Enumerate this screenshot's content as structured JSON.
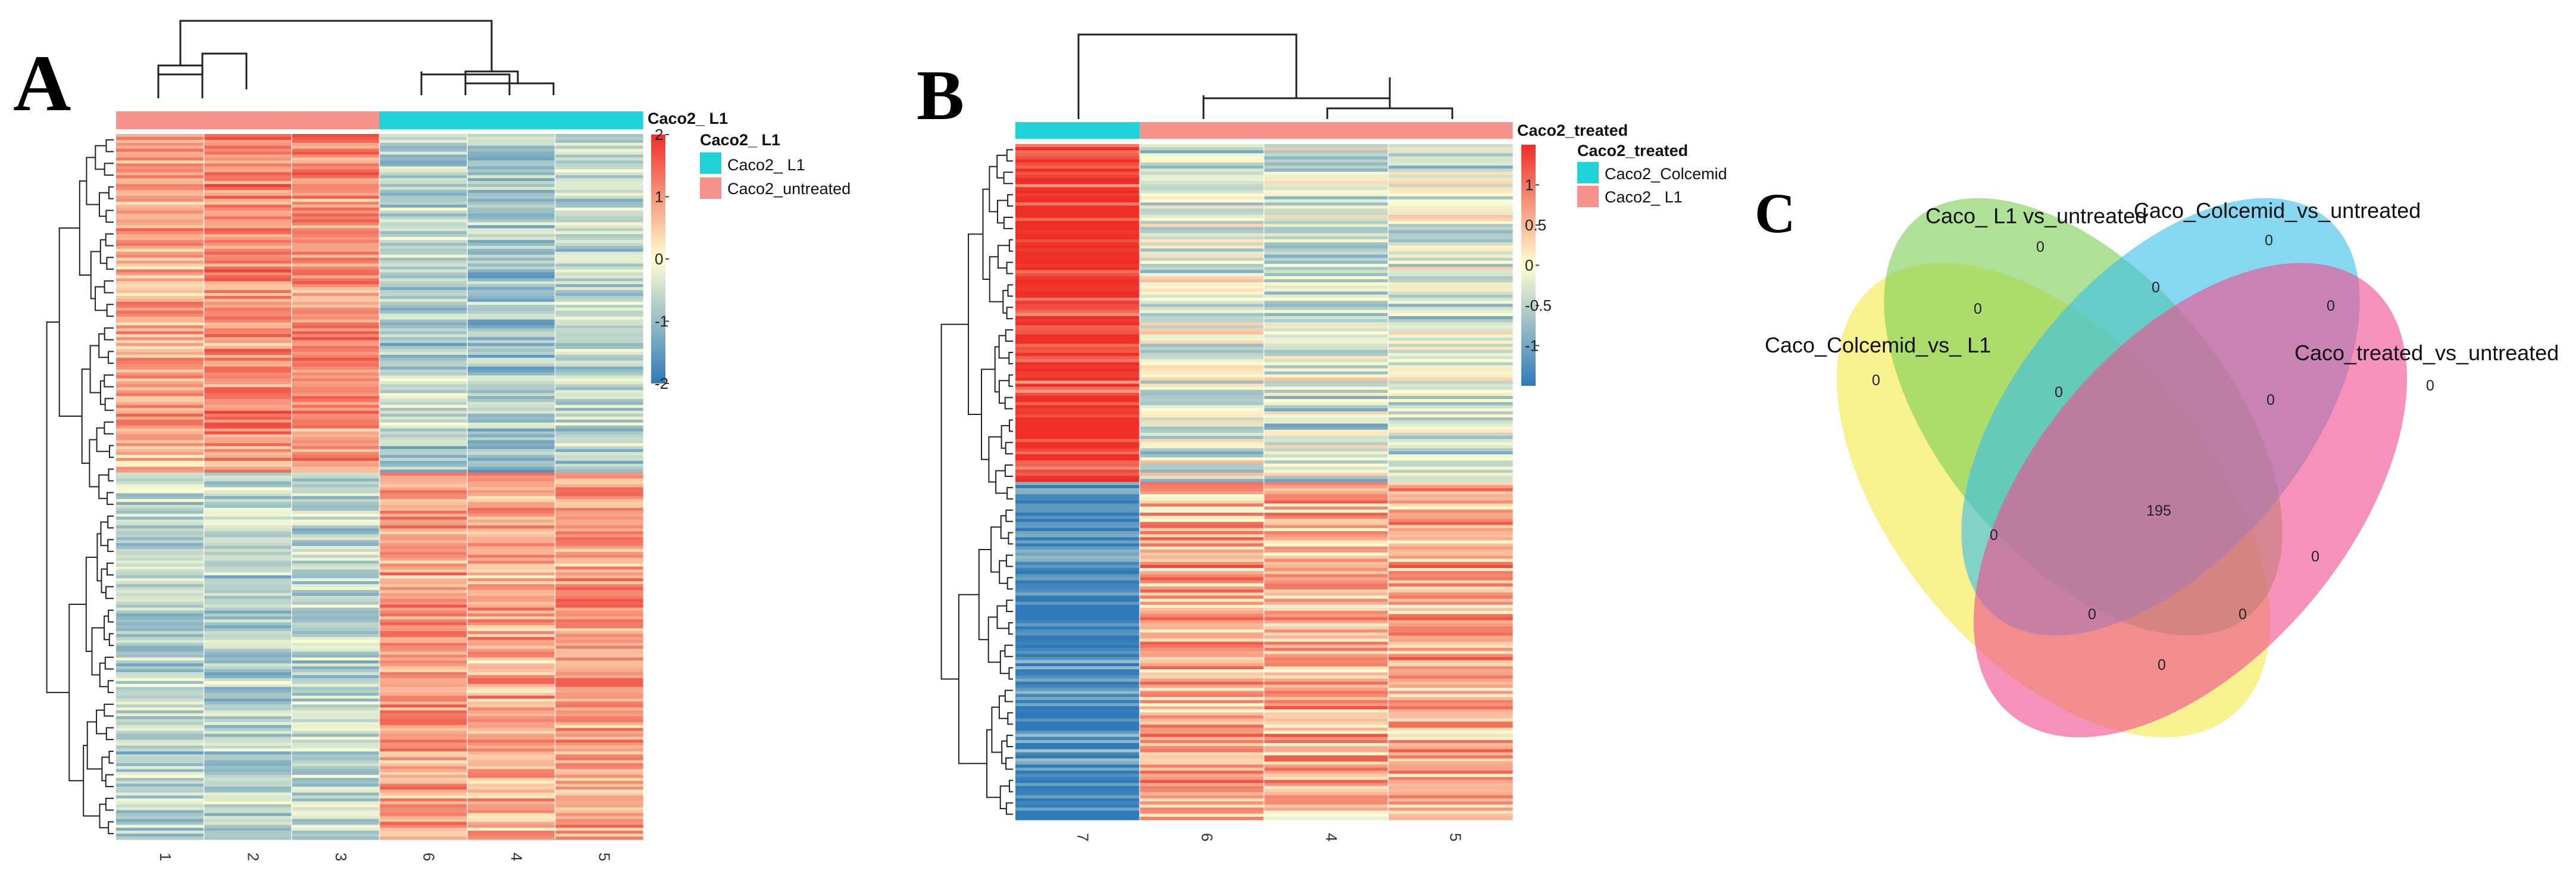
{
  "chart_data": [
    {
      "type": "heatmap",
      "panel_label": "A",
      "column_labels": [
        "1",
        "2",
        "3",
        "6",
        "4",
        "5"
      ],
      "column_groups": [
        "Caco2_untreated",
        "Caco2_untreated",
        "Caco2_untreated",
        "Caco2_ L1",
        "Caco2_ L1",
        "Caco2_ L1"
      ],
      "annotation_title": "Caco2_ L1",
      "legend_title": "Caco2_ L1",
      "legend_entries": [
        {
          "label": "Caco2_ L1",
          "color": "#1fd3d8"
        },
        {
          "label": "Caco2_untreated",
          "color": "#f7938a"
        }
      ],
      "color_scale": {
        "min": -2,
        "max": 2,
        "ticks": [
          "2",
          "1",
          "0",
          "-1",
          "-2"
        ],
        "colors": [
          "#2f7ab9",
          "#ffffd2",
          "#ee2e27"
        ]
      },
      "row_blocks": [
        {
          "fraction": 0.48,
          "means": [
            0.85,
            1.15,
            1.1,
            -0.7,
            -0.9,
            -0.6
          ]
        },
        {
          "fraction": 0.52,
          "means": [
            -0.65,
            -0.7,
            -0.6,
            0.95,
            0.8,
            0.9
          ]
        }
      ]
    },
    {
      "type": "heatmap",
      "panel_label": "B",
      "column_labels": [
        "7",
        "6",
        "4",
        "5"
      ],
      "column_groups": [
        "Caco2_Colcemid",
        "Caco2_ L1",
        "Caco2_ L1",
        "Caco2_ L1"
      ],
      "annotation_title": "Caco2_treated",
      "legend_title": "Caco2_treated",
      "legend_entries": [
        {
          "label": "Caco2_Colcemid",
          "color": "#1fd3d8"
        },
        {
          "label": "Caco2_ L1",
          "color": "#f7938a"
        }
      ],
      "color_scale": {
        "min": -1.5,
        "max": 1.5,
        "ticks": [
          "1",
          "0.5",
          "0",
          "-0.5",
          "-1"
        ],
        "colors": [
          "#2f7ab9",
          "#ffffd2",
          "#ee2e27"
        ]
      },
      "row_blocks": [
        {
          "fraction": 0.5,
          "means": [
            1.45,
            -0.2,
            -0.35,
            -0.25
          ]
        },
        {
          "fraction": 0.5,
          "means": [
            -1.4,
            0.55,
            0.5,
            0.55
          ]
        }
      ]
    },
    {
      "type": "venn",
      "panel_label": "C",
      "sets": [
        {
          "name": "Caco_Colcemid_vs_ L1",
          "color": "#f2e84c"
        },
        {
          "name": "Caco_ L1 vs_untreated",
          "color": "#7ccf56"
        },
        {
          "name": "Caco_Colcemid_vs_untreated",
          "color": "#3cbfe9"
        },
        {
          "name": "Caco_treated_vs_untreated",
          "color": "#f04e8e"
        }
      ],
      "region_counts": [
        "0",
        "0",
        "0",
        "0",
        "0",
        "0",
        "0",
        "0",
        "0",
        "0",
        "0",
        "195",
        "0",
        "0",
        "0"
      ]
    }
  ]
}
